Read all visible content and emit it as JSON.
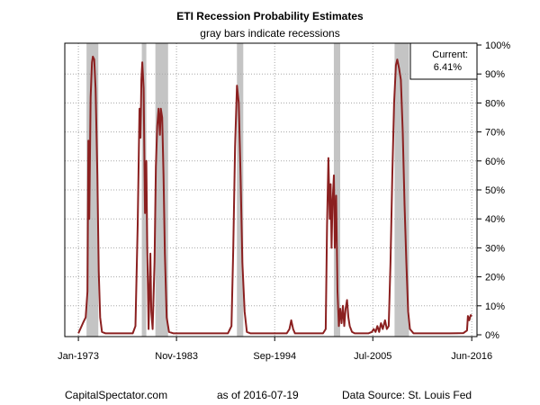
{
  "chart_data": {
    "type": "line",
    "title": "ETI Recession Probability Estimates",
    "subtitle": "gray bars indicate recessions",
    "xlim": [
      1971.5,
      2017.0
    ],
    "ylim": [
      0,
      100
    ],
    "x_ticks": [
      {
        "label": "Jan-1973",
        "value": 1973.0
      },
      {
        "label": "Nov-1983",
        "value": 1983.83
      },
      {
        "label": "Sep-1994",
        "value": 1994.67
      },
      {
        "label": "Jul-2005",
        "value": 2005.5
      },
      {
        "label": "Jun-2016",
        "value": 2016.42
      }
    ],
    "y_ticks": [
      {
        "label": "0%",
        "value": 0
      },
      {
        "label": "10%",
        "value": 10
      },
      {
        "label": "20%",
        "value": 20
      },
      {
        "label": "30%",
        "value": 30
      },
      {
        "label": "40%",
        "value": 40
      },
      {
        "label": "50%",
        "value": 50
      },
      {
        "label": "60%",
        "value": 60
      },
      {
        "label": "70%",
        "value": 70
      },
      {
        "label": "80%",
        "value": 80
      },
      {
        "label": "90%",
        "value": 90
      },
      {
        "label": "100%",
        "value": 100
      }
    ],
    "grid": true,
    "recessions": [
      [
        1973.9,
        1975.2
      ],
      [
        1980.0,
        1980.5
      ],
      [
        1981.5,
        1982.9
      ],
      [
        1990.5,
        1991.2
      ],
      [
        2001.2,
        2001.9
      ],
      [
        2007.9,
        2009.5
      ]
    ],
    "series": [
      {
        "color": "#8b2020",
        "points": [
          [
            1973.0,
            0.5
          ],
          [
            1973.5,
            4
          ],
          [
            1973.8,
            6
          ],
          [
            1974.0,
            15
          ],
          [
            1974.1,
            67
          ],
          [
            1974.2,
            40
          ],
          [
            1974.35,
            82
          ],
          [
            1974.5,
            94
          ],
          [
            1974.6,
            96
          ],
          [
            1974.75,
            95
          ],
          [
            1974.9,
            85
          ],
          [
            1975.1,
            55
          ],
          [
            1975.25,
            22
          ],
          [
            1975.4,
            6
          ],
          [
            1975.6,
            1
          ],
          [
            1976.0,
            0.5
          ],
          [
            1979.0,
            0.5
          ],
          [
            1979.3,
            3
          ],
          [
            1979.55,
            38
          ],
          [
            1979.75,
            78
          ],
          [
            1979.85,
            68
          ],
          [
            1979.95,
            88
          ],
          [
            1980.05,
            94
          ],
          [
            1980.2,
            85
          ],
          [
            1980.35,
            42
          ],
          [
            1980.5,
            60
          ],
          [
            1980.6,
            30
          ],
          [
            1980.75,
            2
          ],
          [
            1980.95,
            28
          ],
          [
            1981.05,
            8
          ],
          [
            1981.2,
            2
          ],
          [
            1981.4,
            25
          ],
          [
            1981.55,
            58
          ],
          [
            1981.7,
            72
          ],
          [
            1981.85,
            78
          ],
          [
            1982.0,
            69
          ],
          [
            1982.1,
            78
          ],
          [
            1982.25,
            75
          ],
          [
            1982.4,
            55
          ],
          [
            1982.55,
            28
          ],
          [
            1982.75,
            6
          ],
          [
            1983.0,
            1
          ],
          [
            1983.5,
            0.5
          ],
          [
            1989.5,
            0.5
          ],
          [
            1989.9,
            3
          ],
          [
            1990.1,
            30
          ],
          [
            1990.3,
            65
          ],
          [
            1990.5,
            86
          ],
          [
            1990.7,
            80
          ],
          [
            1990.9,
            55
          ],
          [
            1991.1,
            25
          ],
          [
            1991.35,
            8
          ],
          [
            1991.6,
            1
          ],
          [
            1992.0,
            0.5
          ],
          [
            1996.0,
            0.5
          ],
          [
            1996.3,
            2
          ],
          [
            1996.5,
            5
          ],
          [
            1996.7,
            2
          ],
          [
            1996.9,
            0.5
          ],
          [
            2000.0,
            0.5
          ],
          [
            2000.3,
            2
          ],
          [
            2000.45,
            38
          ],
          [
            2000.6,
            61
          ],
          [
            2000.75,
            40
          ],
          [
            2000.85,
            52
          ],
          [
            2000.95,
            30
          ],
          [
            2001.05,
            45
          ],
          [
            2001.2,
            55
          ],
          [
            2001.3,
            30
          ],
          [
            2001.45,
            48
          ],
          [
            2001.6,
            15
          ],
          [
            2001.75,
            3
          ],
          [
            2001.9,
            9
          ],
          [
            2002.05,
            4
          ],
          [
            2002.2,
            10
          ],
          [
            2002.35,
            3
          ],
          [
            2002.5,
            9
          ],
          [
            2002.65,
            12
          ],
          [
            2002.8,
            6
          ],
          [
            2002.95,
            3
          ],
          [
            2003.2,
            1
          ],
          [
            2003.5,
            0.5
          ],
          [
            2005.0,
            0.5
          ],
          [
            2005.4,
            1
          ],
          [
            2005.6,
            2
          ],
          [
            2005.8,
            1
          ],
          [
            2006.0,
            3
          ],
          [
            2006.2,
            1
          ],
          [
            2006.4,
            4
          ],
          [
            2006.6,
            2
          ],
          [
            2006.85,
            5
          ],
          [
            2007.05,
            2
          ],
          [
            2007.25,
            3
          ],
          [
            2007.45,
            25
          ],
          [
            2007.65,
            55
          ],
          [
            2007.85,
            80
          ],
          [
            2008.05,
            93
          ],
          [
            2008.2,
            95
          ],
          [
            2008.4,
            92
          ],
          [
            2008.6,
            88
          ],
          [
            2008.8,
            70
          ],
          [
            2009.0,
            45
          ],
          [
            2009.2,
            25
          ],
          [
            2009.4,
            8
          ],
          [
            2009.6,
            2
          ],
          [
            2010.0,
            0.5
          ],
          [
            2014.0,
            0.5
          ],
          [
            2015.5,
            0.6
          ],
          [
            2015.9,
            1.5
          ],
          [
            2016.0,
            6.5
          ],
          [
            2016.15,
            5
          ],
          [
            2016.3,
            6.8
          ],
          [
            2016.42,
            6.41
          ]
        ]
      }
    ],
    "legend": {
      "placement": "top-right",
      "label": "Current:",
      "value": "6.41%"
    },
    "footer": {
      "source_site": "CapitalSpectator.com",
      "as_of": "as of 2016-07-19",
      "data_source": "Data Source: St. Louis Fed"
    }
  }
}
